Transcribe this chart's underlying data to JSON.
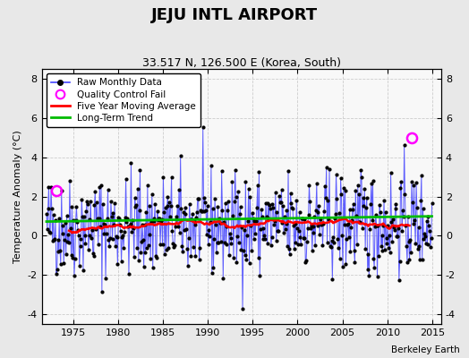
{
  "title": "JEJU INTL AIRPORT",
  "subtitle": "33.517 N, 126.500 E (Korea, South)",
  "ylabel": "Temperature Anomaly (°C)",
  "credit": "Berkeley Earth",
  "xlim": [
    1971.5,
    2016.0
  ],
  "ylim": [
    -4.5,
    8.5
  ],
  "yticks": [
    -4,
    -2,
    0,
    2,
    4,
    6,
    8
  ],
  "xticks": [
    1975,
    1980,
    1985,
    1990,
    1995,
    2000,
    2005,
    2010,
    2015
  ],
  "line_color": "#4444ff",
  "ma_color": "#ff0000",
  "trend_color": "#00bb00",
  "qc_color": "#ff00ff",
  "background_color": "#e8e8e8",
  "plot_bg": "#ffffff",
  "seed": 42
}
